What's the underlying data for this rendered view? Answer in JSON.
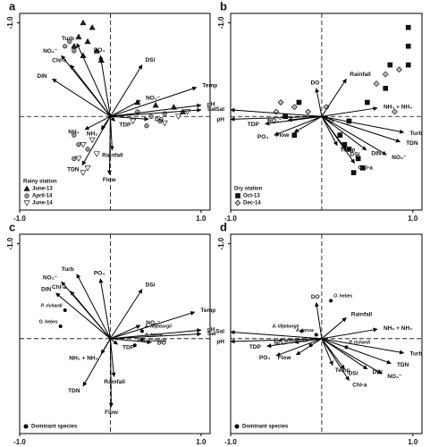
{
  "chart_data": [
    {
      "type": "biplot",
      "label": "a",
      "xlim": [
        -1.0,
        1.1
      ],
      "ylim": [
        1.0,
        -1.1
      ],
      "xticks": [
        {
          "value": -1,
          "label": "-1.0"
        },
        {
          "value": 1,
          "label": "1.0"
        }
      ],
      "yticks": [
        {
          "value": -1,
          "label": "-1.0"
        }
      ],
      "legend": "lower left",
      "legend_title": "Rainy station",
      "arrows": [
        {
          "name": "Turb",
          "x": -0.37,
          "y": -0.78
        },
        {
          "name": "NO₃⁻",
          "x": -0.54,
          "y": -0.65
        },
        {
          "name": "Chl-a",
          "x": -0.44,
          "y": -0.55
        },
        {
          "name": "PO₄",
          "x": -0.11,
          "y": -0.65
        },
        {
          "name": "DIN",
          "x": -0.64,
          "y": -0.4
        },
        {
          "name": "DSi",
          "x": 0.35,
          "y": -0.55
        },
        {
          "name": "Temp",
          "x": 0.95,
          "y": -0.31
        },
        {
          "name": "pH",
          "x": 1.0,
          "y": -0.12
        },
        {
          "name": "Sal",
          "x": 1.0,
          "y": -0.07
        },
        {
          "name": "NO₂⁻",
          "x": 0.33,
          "y": -0.17
        },
        {
          "name": "DO",
          "x": 0.42,
          "y": 0.03
        },
        {
          "name": "TDP",
          "x": 0.05,
          "y": 0.05
        },
        {
          "name": "NH₄",
          "x": -0.28,
          "y": 0.14
        },
        {
          "name": "NH₃",
          "x": -0.1,
          "y": 0.14
        },
        {
          "name": "TDN",
          "x": -0.31,
          "y": 0.52
        },
        {
          "name": "Rainfall",
          "x": 0.02,
          "y": 0.36
        },
        {
          "name": "Flow",
          "x": -0.01,
          "y": 0.62
        }
      ],
      "series": [
        {
          "name": "June-13",
          "marker": "triangle",
          "color": "#222222",
          "x": [
            -0.3,
            -0.2,
            -0.35,
            -0.25,
            -0.4,
            -0.15,
            -0.3,
            0.3,
            0.5,
            0.7,
            0.8,
            -0.1
          ],
          "y": [
            -1.0,
            -0.95,
            -0.85,
            -0.8,
            -0.75,
            -0.7,
            -0.65,
            -0.15,
            -0.12,
            -0.1,
            -0.05,
            -0.6
          ]
        },
        {
          "name": "April-14",
          "marker": "circle",
          "color": "#9a9a9a",
          "x": [
            -0.45,
            -0.5,
            -0.4,
            0.3,
            0.45,
            0.6,
            0.55,
            0.4,
            -0.4,
            -0.35,
            -0.25,
            -0.4
          ],
          "y": [
            -0.8,
            -0.75,
            -0.7,
            -0.05,
            0.0,
            -0.03,
            0.05,
            0.1,
            0.2,
            0.3,
            0.35,
            0.45
          ]
        },
        {
          "name": "June-14",
          "marker": "invtriangle",
          "color": "#ffffff",
          "x": [
            -0.3,
            -0.35,
            -0.25,
            -0.3,
            -0.15,
            -0.2,
            0.6,
            0.75,
            0.85,
            0.25
          ],
          "y": [
            0.3,
            0.45,
            0.55,
            0.6,
            0.4,
            0.25,
            0.07,
            0.0,
            -0.05,
            0.05
          ]
        }
      ]
    },
    {
      "type": "biplot",
      "label": "b",
      "xlim": [
        -1.0,
        1.1
      ],
      "ylim": [
        1.0,
        -1.1
      ],
      "xticks": [
        {
          "value": -1,
          "label": "-1.0"
        },
        {
          "value": 1,
          "label": "1.0"
        }
      ],
      "yticks": [
        {
          "value": -1,
          "label": "-1.0"
        }
      ],
      "legend": "lower left",
      "legend_title": "Dry station",
      "arrows": [
        {
          "name": "Sal",
          "x": -1.0,
          "y": -0.07
        },
        {
          "name": "pH",
          "x": -1.0,
          "y": 0.03
        },
        {
          "name": "TDP",
          "x": -0.62,
          "y": 0.08
        },
        {
          "name": "PO₄",
          "x": -0.52,
          "y": 0.2
        },
        {
          "name": "Flow",
          "x": -0.3,
          "y": 0.17
        },
        {
          "name": "NO₂⁻",
          "x": -0.37,
          "y": 0.04
        },
        {
          "name": "DO",
          "x": -0.06,
          "y": -0.3
        },
        {
          "name": "Rainfall",
          "x": 0.27,
          "y": -0.4
        },
        {
          "name": "NH₃ + NH₄",
          "x": 0.61,
          "y": -0.09
        },
        {
          "name": "Turb",
          "x": 0.9,
          "y": 0.17
        },
        {
          "name": "TDN",
          "x": 0.86,
          "y": 0.27
        },
        {
          "name": "DIN",
          "x": 0.49,
          "y": 0.36
        },
        {
          "name": "NO₃⁻",
          "x": 0.71,
          "y": 0.41
        },
        {
          "name": "Chl-a",
          "x": 0.36,
          "y": 0.5
        },
        {
          "name": "DSi",
          "x": 0.27,
          "y": 0.36
        },
        {
          "name": "Temp",
          "x": 0.17,
          "y": 0.31
        }
      ],
      "series": [
        {
          "name": "Oct-13",
          "marker": "square",
          "color": "#111111",
          "x": [
            0.95,
            0.95,
            0.95,
            0.75,
            0.7,
            0.5,
            0.3,
            0.2,
            0.25,
            0.3,
            0.4,
            0.45,
            0.35,
            -0.25,
            -0.4,
            -0.3
          ],
          "y": [
            -0.95,
            -0.75,
            -0.55,
            -0.55,
            -0.3,
            -0.15,
            0.05,
            0.2,
            0.3,
            0.35,
            0.45,
            0.55,
            0.6,
            -0.15,
            0.0,
            0.2
          ]
        },
        {
          "name": "Dec-14",
          "marker": "diamond",
          "color": "#bbbbbb",
          "x": [
            0.7,
            0.6,
            0.8,
            0.85,
            -0.45,
            -0.5,
            -0.3,
            -0.15,
            0.1,
            0.05
          ],
          "y": [
            -0.45,
            -0.35,
            -0.05,
            -0.5,
            -0.15,
            -0.05,
            -0.1,
            -0.05,
            0.05,
            -0.1
          ]
        }
      ]
    },
    {
      "type": "biplot",
      "label": "c",
      "xlim": [
        -1.0,
        1.1
      ],
      "ylim": [
        1.0,
        -1.1
      ],
      "xticks": [
        {
          "value": -1,
          "label": "-1.0"
        },
        {
          "value": 1,
          "label": "1.0"
        }
      ],
      "yticks": [
        {
          "value": -1,
          "label": "-1.0"
        }
      ],
      "legend": "lower left",
      "legend_title": "Dominant species",
      "arrows": [
        {
          "name": "Turb",
          "x": -0.37,
          "y": -0.68
        },
        {
          "name": "NO₃⁻",
          "x": -0.54,
          "y": -0.6
        },
        {
          "name": "Chl-a",
          "x": -0.44,
          "y": -0.5
        },
        {
          "name": "PO₄",
          "x": -0.11,
          "y": -0.63
        },
        {
          "name": "DIN",
          "x": -0.6,
          "y": -0.48
        },
        {
          "name": "DSi",
          "x": 0.35,
          "y": -0.52
        },
        {
          "name": "Temp",
          "x": 0.93,
          "y": -0.28
        },
        {
          "name": "pH",
          "x": 1.0,
          "y": -0.09
        },
        {
          "name": "Sal",
          "x": 1.0,
          "y": -0.05
        },
        {
          "name": "NO₂⁻",
          "x": 0.33,
          "y": -0.14
        },
        {
          "name": "DO",
          "x": 0.45,
          "y": 0.04
        },
        {
          "name": "TDP",
          "x": 0.08,
          "y": 0.06
        },
        {
          "name": "NH₃ + NH₄",
          "x": -0.1,
          "y": 0.16
        },
        {
          "name": "TDN",
          "x": -0.3,
          "y": 0.5
        },
        {
          "name": "Rainfall",
          "x": 0.04,
          "y": 0.4
        },
        {
          "name": "Flow",
          "x": 0.01,
          "y": 0.72
        }
      ],
      "species": [
        {
          "name": "P. richardi",
          "x": -0.5,
          "y": -0.3
        },
        {
          "name": "O. hebes",
          "x": -0.55,
          "y": -0.13
        },
        {
          "name": "A. lilljeborgii",
          "x": 0.35,
          "y": -0.08
        },
        {
          "name": "A. tonsa",
          "x": 0.35,
          "y": 0.01
        },
        {
          "name": "P. quasimodo",
          "x": 0.27,
          "y": 0.07
        }
      ]
    },
    {
      "type": "biplot",
      "label": "d",
      "xlim": [
        -1.0,
        1.1
      ],
      "ylim": [
        1.0,
        -1.1
      ],
      "xticks": [
        {
          "value": -1,
          "label": "-1.0"
        },
        {
          "value": 1,
          "label": "1.0"
        }
      ],
      "yticks": [
        {
          "value": -1,
          "label": "-1.0"
        }
      ],
      "legend": "lower left",
      "legend_title": "Dominant species",
      "arrows": [
        {
          "name": "Sal",
          "x": -1.0,
          "y": -0.07
        },
        {
          "name": "pH",
          "x": -1.0,
          "y": 0.03
        },
        {
          "name": "TDP",
          "x": -0.6,
          "y": 0.08
        },
        {
          "name": "PO₄",
          "x": -0.5,
          "y": 0.18
        },
        {
          "name": "Flow",
          "x": -0.28,
          "y": 0.17
        },
        {
          "name": "NO₂⁻",
          "x": -0.3,
          "y": 0.04
        },
        {
          "name": "DO",
          "x": -0.06,
          "y": -0.38
        },
        {
          "name": "Rainfall",
          "x": 0.27,
          "y": -0.22
        },
        {
          "name": "NH₃ + NH₄",
          "x": 0.61,
          "y": -0.1
        },
        {
          "name": "Turb",
          "x": 0.9,
          "y": 0.15
        },
        {
          "name": "TDN",
          "x": 0.76,
          "y": 0.26
        },
        {
          "name": "DIN",
          "x": 0.5,
          "y": 0.32
        },
        {
          "name": "NO₃⁻",
          "x": 0.66,
          "y": 0.37
        },
        {
          "name": "Chl-a",
          "x": 0.3,
          "y": 0.44
        },
        {
          "name": "DSi",
          "x": 0.25,
          "y": 0.32
        },
        {
          "name": "Temp",
          "x": 0.12,
          "y": 0.28
        }
      ],
      "species": [
        {
          "name": "O. hebes",
          "x": 0.1,
          "y": -0.4
        },
        {
          "name": "A. lilljeborgii",
          "x": -0.22,
          "y": -0.08
        },
        {
          "name": "A. tonsa",
          "x": -0.06,
          "y": -0.04
        },
        {
          "name": "P. quasimodo",
          "x": -0.12,
          "y": 0.07
        },
        {
          "name": "P. richardi",
          "x": 0.27,
          "y": 0.09
        }
      ]
    }
  ]
}
